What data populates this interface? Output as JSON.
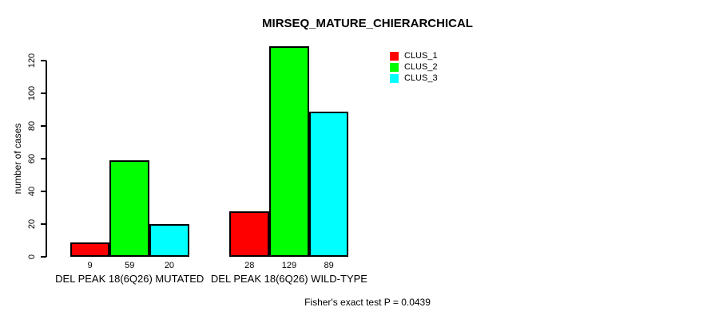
{
  "chart_data": {
    "type": "bar",
    "title": "MIRSEQ_MATURE_CHIERARCHICAL",
    "ylabel": "number of cases",
    "xlabel": "",
    "categories": [
      "DEL PEAK 18(6Q26) MUTATED",
      "DEL PEAK 18(6Q26) WILD-TYPE"
    ],
    "series": [
      {
        "name": "CLUS_1",
        "color": "#ff0000",
        "values": [
          9,
          28
        ]
      },
      {
        "name": "CLUS_2",
        "color": "#00ff00",
        "values": [
          59,
          129
        ]
      },
      {
        "name": "CLUS_3",
        "color": "#00ffff",
        "values": [
          20,
          89
        ]
      }
    ],
    "yticks": [
      0,
      20,
      40,
      60,
      80,
      100,
      120
    ],
    "ylim": [
      0,
      129
    ],
    "grid": false,
    "legend_position": "top-right",
    "bar_border_color": "#000000",
    "annotation": "Fisher's exact test P = 0.0439"
  }
}
